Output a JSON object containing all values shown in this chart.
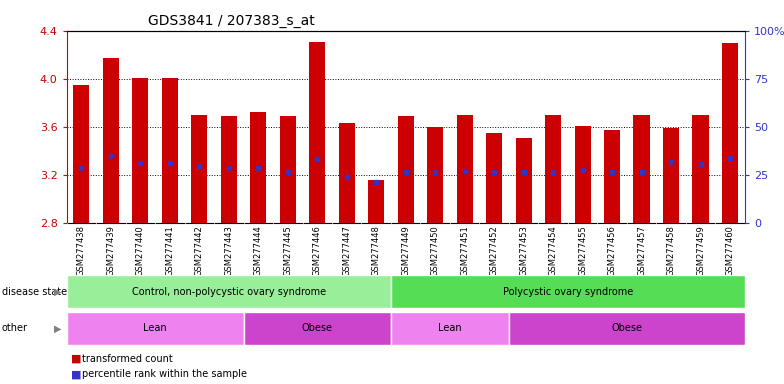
{
  "title": "GDS3841 / 207383_s_at",
  "samples": [
    "GSM277438",
    "GSM277439",
    "GSM277440",
    "GSM277441",
    "GSM277442",
    "GSM277443",
    "GSM277444",
    "GSM277445",
    "GSM277446",
    "GSM277447",
    "GSM277448",
    "GSM277449",
    "GSM277450",
    "GSM277451",
    "GSM277452",
    "GSM277453",
    "GSM277454",
    "GSM277455",
    "GSM277456",
    "GSM277457",
    "GSM277458",
    "GSM277459",
    "GSM277460"
  ],
  "bar_values": [
    3.95,
    4.17,
    4.01,
    4.01,
    3.7,
    3.69,
    3.72,
    3.69,
    4.31,
    3.63,
    3.16,
    3.69,
    3.6,
    3.7,
    3.55,
    3.51,
    3.7,
    3.61,
    3.57,
    3.7,
    3.59,
    3.7,
    4.3
  ],
  "percentile_values": [
    3.26,
    3.36,
    3.3,
    3.3,
    3.27,
    3.26,
    3.26,
    3.22,
    3.33,
    3.18,
    3.14,
    3.22,
    3.22,
    3.23,
    3.22,
    3.22,
    3.22,
    3.24,
    3.22,
    3.22,
    3.31,
    3.29,
    3.34
  ],
  "ymin": 2.8,
  "ymax": 4.4,
  "yticks": [
    2.8,
    3.2,
    3.6,
    4.0,
    4.4
  ],
  "bar_color": "#cc0000",
  "percentile_color": "#3333cc",
  "bar_width": 0.55,
  "disease_state_groups": [
    {
      "label": "Control, non-polycystic ovary syndrome",
      "start": 0,
      "end": 10,
      "color": "#99EE99"
    },
    {
      "label": "Polycystic ovary syndrome",
      "start": 11,
      "end": 22,
      "color": "#55DD55"
    }
  ],
  "other_groups": [
    {
      "label": "Lean",
      "start": 0,
      "end": 5,
      "color": "#EE82EE"
    },
    {
      "label": "Obese",
      "start": 6,
      "end": 10,
      "color": "#CC44CC"
    },
    {
      "label": "Lean",
      "start": 11,
      "end": 14,
      "color": "#EE82EE"
    },
    {
      "label": "Obese",
      "start": 15,
      "end": 22,
      "color": "#CC44CC"
    }
  ],
  "right_yticks": [
    0,
    25,
    50,
    75,
    100
  ],
  "right_ylabels": [
    "0",
    "25",
    "50",
    "75",
    "100%"
  ],
  "bg_color": "#ffffff",
  "plot_bg": "#ffffff",
  "left_label_color": "#cc0000",
  "right_label_color": "#3333cc",
  "grid_color": "black",
  "tick_area_bg": "#d8d8d8"
}
